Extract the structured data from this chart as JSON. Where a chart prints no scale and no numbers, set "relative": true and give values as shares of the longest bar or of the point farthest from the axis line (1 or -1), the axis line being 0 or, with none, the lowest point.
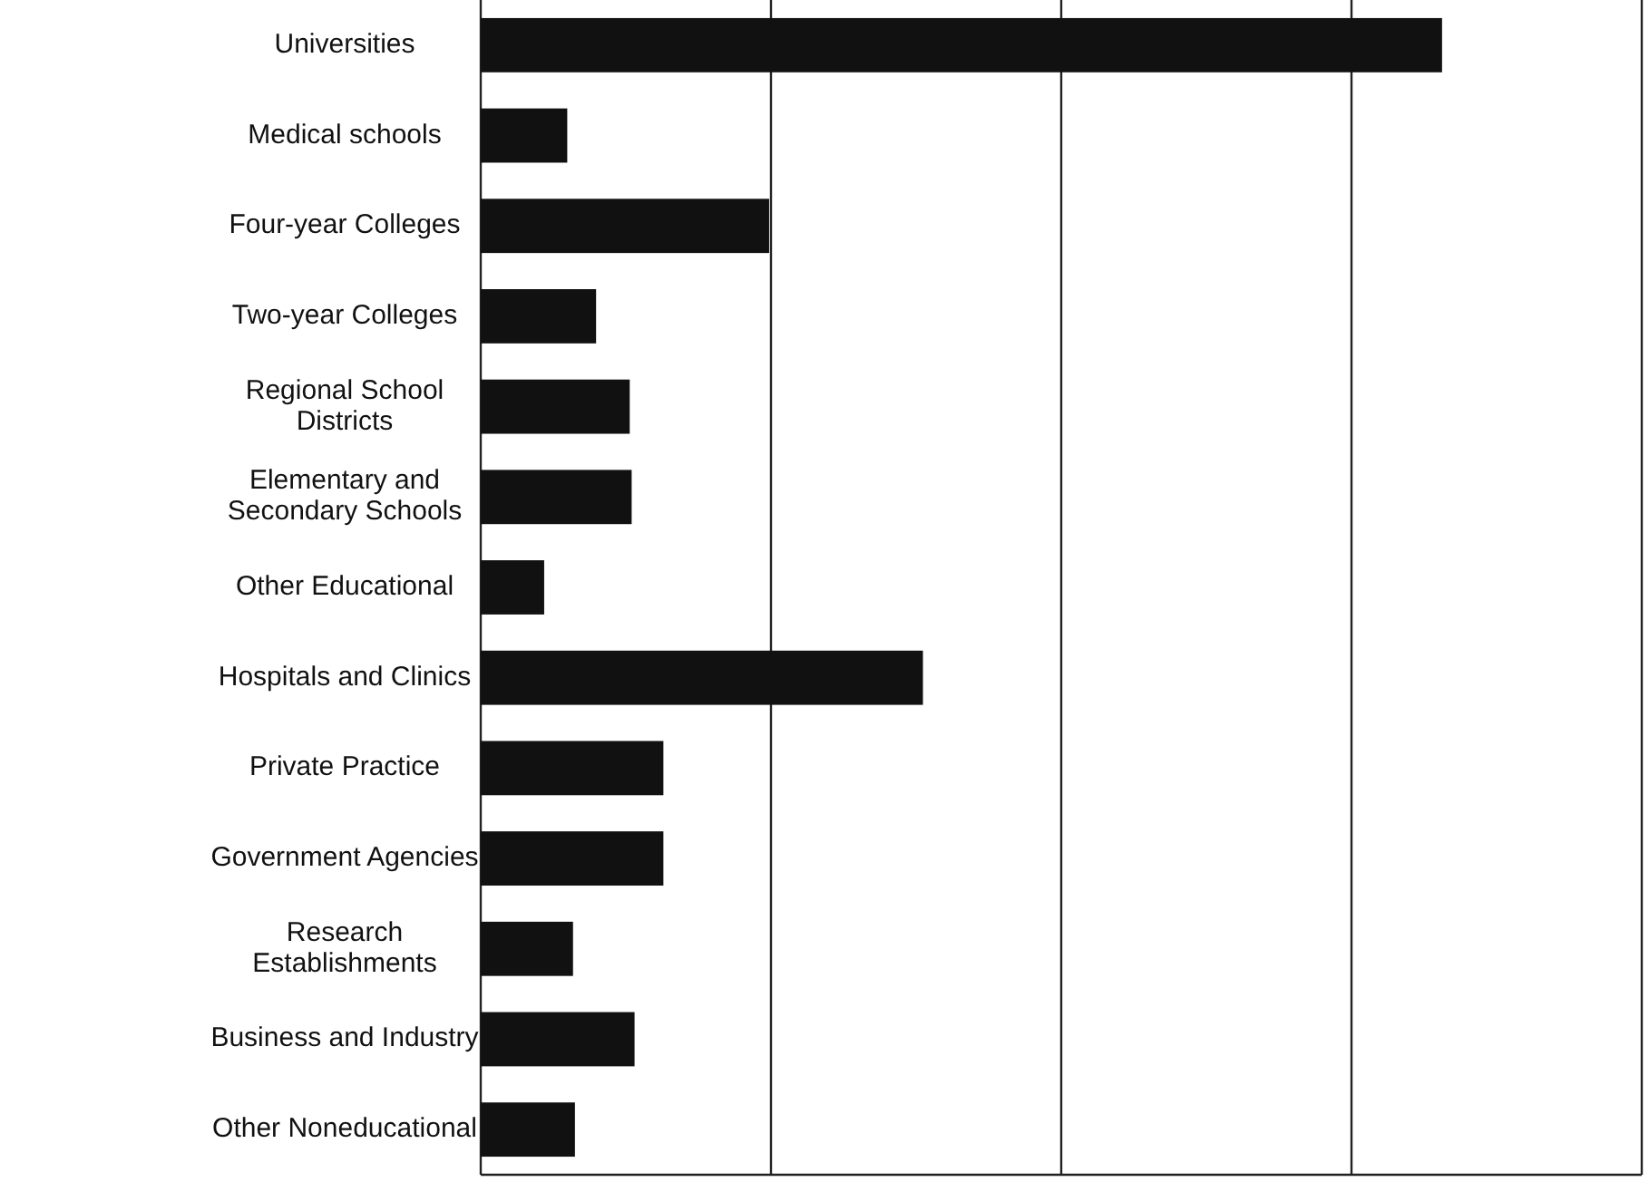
{
  "chart_data": {
    "type": "bar",
    "orientation": "horizontal",
    "relative": true,
    "grid": "x",
    "categories": [
      "Universities",
      "Medical schools",
      "Four-year Colleges",
      "Two-year Colleges",
      "Regional School\nDistricts",
      "Elementary and\nSecondary Schools",
      "Other Educational",
      "Hospitals and Clinics",
      "Private Practice",
      "Government Agencies",
      "Research\nEstablishments",
      "Business and Industry",
      "Other Noneducational"
    ],
    "values": [
      1,
      0.09,
      0.3,
      0.12,
      0.155,
      0.157,
      0.066,
      0.46,
      0.19,
      0.19,
      0.096,
      0.16,
      0.098
    ],
    "color": "#111111"
  }
}
